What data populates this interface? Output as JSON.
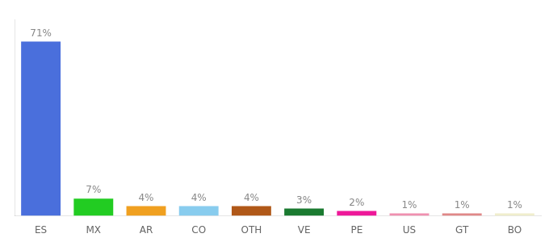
{
  "chart_data": {
    "type": "bar",
    "categories": [
      "ES",
      "MX",
      "AR",
      "CO",
      "OTH",
      "VE",
      "PE",
      "US",
      "GT",
      "BO"
    ],
    "values": [
      71,
      7,
      4,
      4,
      4,
      3,
      2,
      1,
      1,
      1
    ],
    "value_labels": [
      "71%",
      "7%",
      "4%",
      "4%",
      "4%",
      "3%",
      "2%",
      "1%",
      "1%",
      "1%"
    ],
    "colors": [
      "#4a6fdc",
      "#22cc22",
      "#f0a020",
      "#88ccee",
      "#b05818",
      "#1a7a30",
      "#ee1899",
      "#f090b0",
      "#e08888",
      "#f0eecc"
    ],
    "ylim": [
      0,
      80
    ],
    "grid": false,
    "data_labels": true,
    "tick_labels": "x"
  }
}
